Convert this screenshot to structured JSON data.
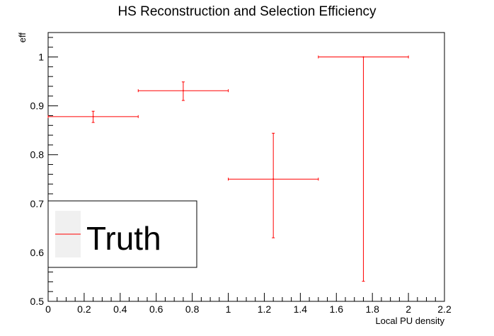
{
  "chart_data": {
    "type": "scatter",
    "title": "HS Reconstruction and Selection Efficiency",
    "xlabel": "Local PU density",
    "ylabel": "eff",
    "xlim": [
      0,
      2.2
    ],
    "ylim": [
      0.5,
      1.05
    ],
    "x_ticks": [
      "0",
      "0.2",
      "0.4",
      "0.6",
      "0.8",
      "1",
      "1.2",
      "1.4",
      "1.6",
      "1.8",
      "2",
      "2.2"
    ],
    "y_ticks": [
      "0.5",
      "0.6",
      "0.7",
      "0.8",
      "0.9",
      "1"
    ],
    "grid": false,
    "legend": {
      "position": "bottom-left",
      "entries": [
        "Truth"
      ]
    },
    "series": [
      {
        "name": "Truth",
        "color": "#ff0000",
        "points": [
          {
            "x": 0.25,
            "xerr": 0.25,
            "y": 0.878,
            "ylow": 0.866,
            "yhigh": 0.889
          },
          {
            "x": 0.75,
            "xerr": 0.25,
            "y": 0.931,
            "ylow": 0.911,
            "yhigh": 0.949
          },
          {
            "x": 1.25,
            "xerr": 0.25,
            "y": 0.75,
            "ylow": 0.63,
            "yhigh": 0.844
          },
          {
            "x": 1.75,
            "xerr": 0.25,
            "y": 1.0,
            "ylow": 0.541,
            "yhigh": 1.0
          }
        ]
      }
    ]
  }
}
